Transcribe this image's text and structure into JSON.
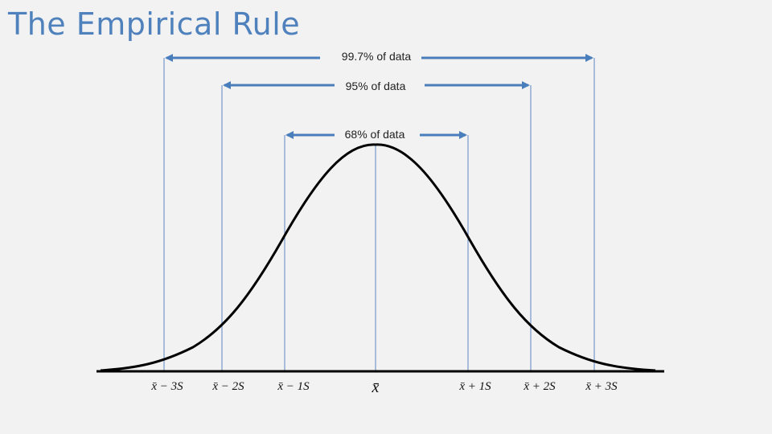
{
  "title": "The Empirical Rule",
  "ranges": [
    {
      "label": "99.7% of data",
      "sigma": 3
    },
    {
      "label": "95% of data",
      "sigma": 2
    },
    {
      "label": "68% of data",
      "sigma": 1
    }
  ],
  "ticks": {
    "minus3": "x̄ − 3S",
    "minus2": "x̄ − 2S",
    "minus1": "x̄ − 1S",
    "mean": "x̄",
    "plus1": "x̄ + 1S",
    "plus2": "x̄ + 2S",
    "plus3": "x̄ + 3S"
  },
  "colors": {
    "title": "#4f81bd",
    "arrow": "#4a7ebb",
    "guide": "#5b86c2",
    "curve": "#000000"
  }
}
